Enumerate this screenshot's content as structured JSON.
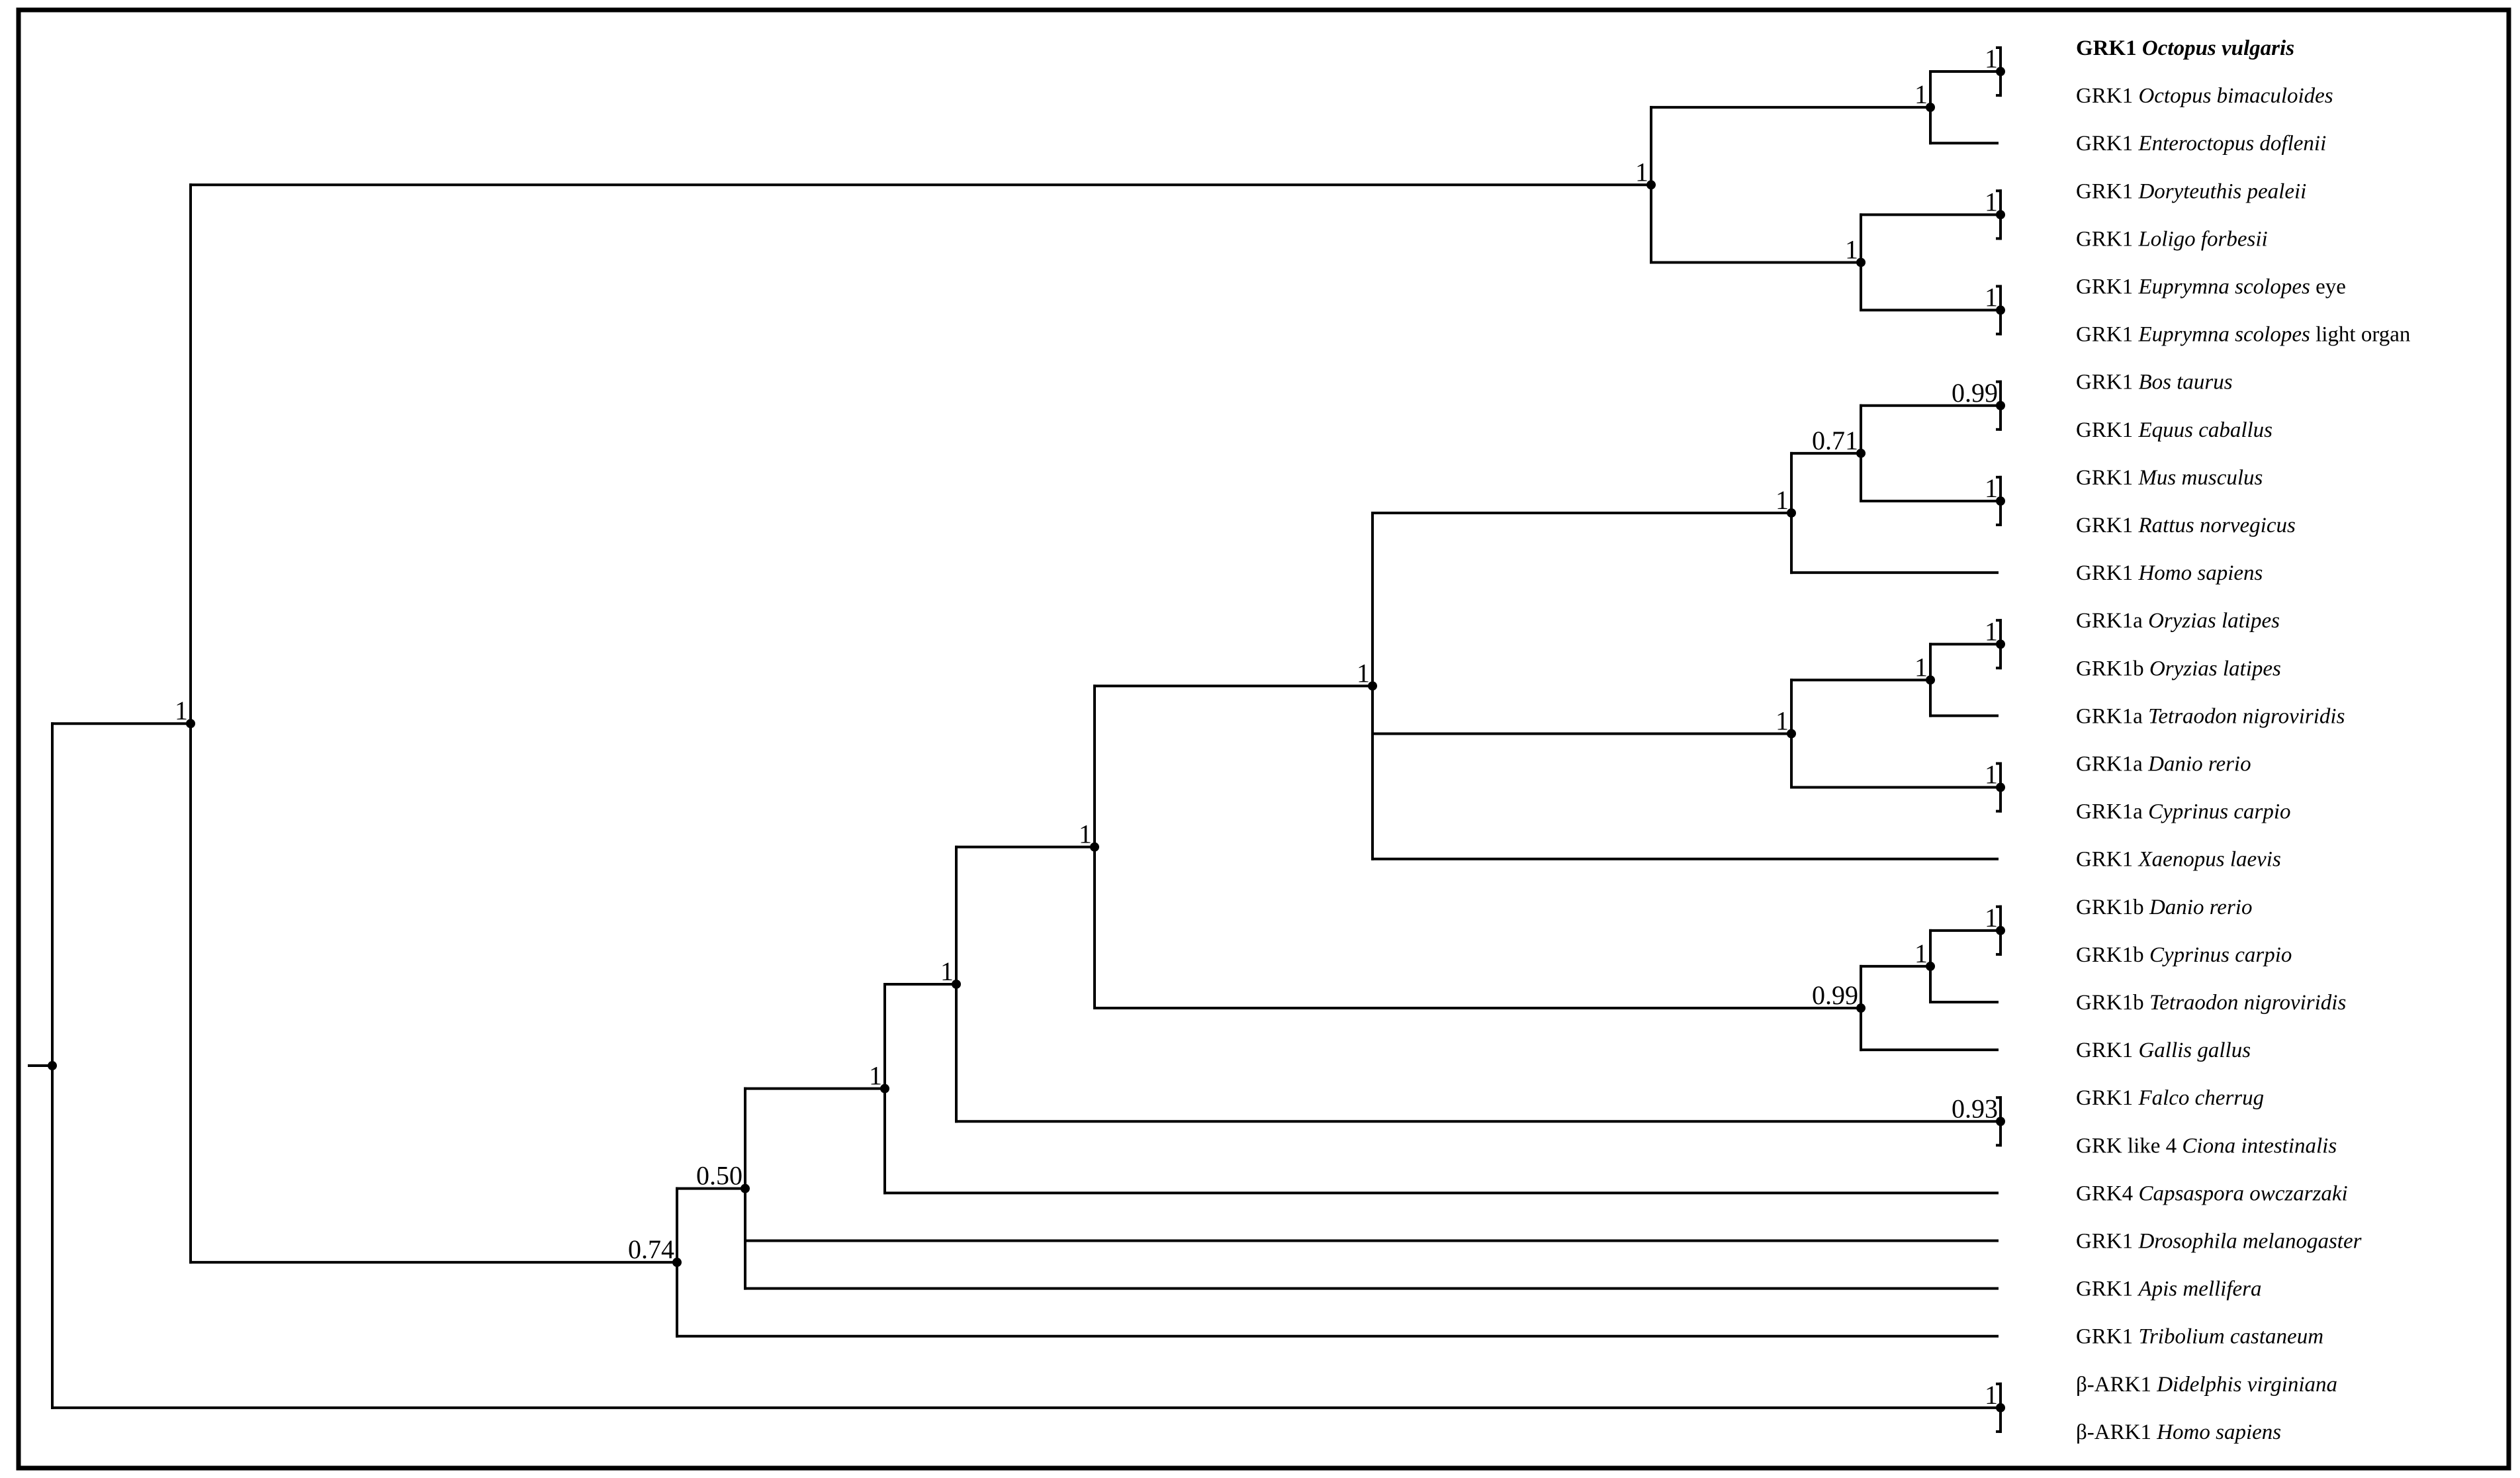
{
  "figure": {
    "colors": {
      "ink": "#000000",
      "background": "#ffffff"
    },
    "leaves": [
      {
        "gene": "GRK1",
        "species": "Octopus vulgaris",
        "suffix": "",
        "bold": true
      },
      {
        "gene": "GRK1",
        "species": "Octopus bimaculoides",
        "suffix": ""
      },
      {
        "gene": "GRK1",
        "species": "Enteroctopus doflenii",
        "suffix": ""
      },
      {
        "gene": "GRK1",
        "species": "Doryteuthis pealeii",
        "suffix": ""
      },
      {
        "gene": "GRK1",
        "species": "Loligo forbesii",
        "suffix": ""
      },
      {
        "gene": "GRK1",
        "species": "Euprymna scolopes",
        "suffix": "eye"
      },
      {
        "gene": "GRK1",
        "species": "Euprymna scolopes",
        "suffix": "light organ"
      },
      {
        "gene": "GRK1",
        "species": "Bos taurus",
        "suffix": ""
      },
      {
        "gene": "GRK1",
        "species": "Equus caballus",
        "suffix": ""
      },
      {
        "gene": "GRK1",
        "species": "Mus musculus",
        "suffix": ""
      },
      {
        "gene": "GRK1",
        "species": "Rattus norvegicus",
        "suffix": ""
      },
      {
        "gene": "GRK1",
        "species": "Homo sapiens",
        "suffix": ""
      },
      {
        "gene": "GRK1a",
        "species": "Oryzias latipes",
        "suffix": ""
      },
      {
        "gene": "GRK1b",
        "species": "Oryzias latipes",
        "suffix": ""
      },
      {
        "gene": "GRK1a",
        "species": "Tetraodon nigroviridis",
        "suffix": ""
      },
      {
        "gene": "GRK1a",
        "species": "Danio rerio",
        "suffix": ""
      },
      {
        "gene": "GRK1a",
        "species": "Cyprinus carpio",
        "suffix": ""
      },
      {
        "gene": "GRK1",
        "species": "Xaenopus laevis",
        "suffix": ""
      },
      {
        "gene": "GRK1b",
        "species": "Danio rerio",
        "suffix": ""
      },
      {
        "gene": "GRK1b",
        "species": "Cyprinus carpio",
        "suffix": ""
      },
      {
        "gene": "GRK1b",
        "species": "Tetraodon nigroviridis",
        "suffix": ""
      },
      {
        "gene": "GRK1",
        "species": "Gallis gallus",
        "suffix": ""
      },
      {
        "gene": "GRK1",
        "species": "Falco cherrug",
        "suffix": ""
      },
      {
        "gene": "GRK like 4",
        "species": "Ciona intestinalis",
        "suffix": ""
      },
      {
        "gene": "GRK4",
        "species": "Capsaspora owczarzaki",
        "suffix": ""
      },
      {
        "gene": "GRK1",
        "species": "Drosophila melanogaster",
        "suffix": ""
      },
      {
        "gene": "GRK1",
        "species": "Apis mellifera",
        "suffix": ""
      },
      {
        "gene": "GRK1",
        "species": "Tribolium castaneum",
        "suffix": ""
      },
      {
        "gene": "β-ARK1",
        "species": "Didelphis virginiana",
        "suffix": ""
      },
      {
        "gene": "β-ARK1",
        "species": "Homo sapiens",
        "suffix": ""
      }
    ],
    "nodes": [
      {
        "id": "octo2",
        "support": "1",
        "children": [
          {
            "leaf": 0
          },
          {
            "leaf": 1
          }
        ]
      },
      {
        "id": "octo3",
        "support": "1",
        "children": [
          {
            "node": "octo2"
          },
          {
            "leaf": 2
          }
        ]
      },
      {
        "id": "lolig",
        "support": "1",
        "children": [
          {
            "leaf": 3
          },
          {
            "leaf": 4
          }
        ]
      },
      {
        "id": "eupry",
        "support": "1",
        "children": [
          {
            "leaf": 5
          },
          {
            "leaf": 6
          }
        ]
      },
      {
        "id": "decap",
        "support": "1",
        "children": [
          {
            "node": "lolig"
          },
          {
            "node": "eupry"
          }
        ]
      },
      {
        "id": "cepha",
        "support": "1",
        "children": [
          {
            "node": "octo3"
          },
          {
            "node": "decap"
          }
        ]
      },
      {
        "id": "bosequ",
        "support": "0.99",
        "children": [
          {
            "leaf": 7
          },
          {
            "leaf": 8
          }
        ]
      },
      {
        "id": "rodent",
        "support": "1",
        "children": [
          {
            "leaf": 9
          },
          {
            "leaf": 10
          }
        ]
      },
      {
        "id": "mamm4",
        "support": "0.71",
        "children": [
          {
            "node": "bosequ"
          },
          {
            "node": "rodent"
          }
        ]
      },
      {
        "id": "mamm5",
        "support": "1",
        "children": [
          {
            "node": "mamm4"
          },
          {
            "leaf": 11
          }
        ]
      },
      {
        "id": "oryz",
        "support": "1",
        "children": [
          {
            "leaf": 12
          },
          {
            "leaf": 13
          }
        ]
      },
      {
        "id": "oryzt",
        "support": "1",
        "children": [
          {
            "node": "oryz"
          },
          {
            "leaf": 14
          }
        ]
      },
      {
        "id": "cypa",
        "support": "1",
        "children": [
          {
            "leaf": 15
          },
          {
            "leaf": 16
          }
        ]
      },
      {
        "id": "fisha",
        "support": "1",
        "children": [
          {
            "node": "oryzt"
          },
          {
            "node": "cypa"
          }
        ]
      },
      {
        "id": "tetra",
        "support": "1",
        "children": [
          {
            "node": "mamm5"
          },
          {
            "node": "fisha"
          },
          {
            "leaf": 17
          }
        ]
      },
      {
        "id": "cypb",
        "support": "1",
        "children": [
          {
            "leaf": 18
          },
          {
            "leaf": 19
          }
        ]
      },
      {
        "id": "fishb",
        "support": "1",
        "children": [
          {
            "node": "cypb"
          },
          {
            "leaf": 20
          }
        ]
      },
      {
        "id": "fishbg",
        "support": "0.99",
        "children": [
          {
            "node": "fishb"
          },
          {
            "leaf": 21
          }
        ]
      },
      {
        "id": "vert",
        "support": "1",
        "children": [
          {
            "node": "tetra"
          },
          {
            "node": "fishbg"
          }
        ]
      },
      {
        "id": "falcio",
        "support": "0.93",
        "children": [
          {
            "leaf": 22
          },
          {
            "leaf": 23
          }
        ]
      },
      {
        "id": "vertx",
        "support": "1",
        "children": [
          {
            "node": "vert"
          },
          {
            "node": "falcio"
          }
        ]
      },
      {
        "id": "caps",
        "support": "1",
        "children": [
          {
            "node": "vertx"
          },
          {
            "leaf": 24
          }
        ]
      },
      {
        "id": "insect",
        "support": "0.50",
        "children": [
          {
            "node": "caps"
          },
          {
            "leaf": 25
          },
          {
            "leaf": 26
          }
        ]
      },
      {
        "id": "trib",
        "support": "0.74",
        "children": [
          {
            "node": "insect"
          },
          {
            "leaf": 27
          }
        ]
      },
      {
        "id": "main",
        "support": "1",
        "children": [
          {
            "node": "cepha"
          },
          {
            "node": "trib"
          }
        ]
      },
      {
        "id": "bark",
        "support": "1",
        "children": [
          {
            "leaf": 28
          },
          {
            "leaf": 29
          }
        ]
      },
      {
        "id": "root",
        "support": "",
        "children": [
          {
            "node": "main"
          },
          {
            "node": "bark"
          }
        ]
      }
    ]
  }
}
